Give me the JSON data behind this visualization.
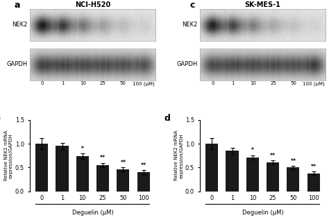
{
  "panel_a_title": "NCI-H520",
  "panel_c_title": "SK-MES-1",
  "blot_labels_left": [
    "NEK2",
    "GAPDH"
  ],
  "blot_labels_right": [
    "NEK2",
    "GAPDH"
  ],
  "x_tick_labels": [
    "0",
    "1",
    "10",
    "25",
    "50",
    "100 (μM)"
  ],
  "bar_categories": [
    "0",
    "1",
    "10",
    "25",
    "50",
    "100"
  ],
  "xlabel": "Deguelin (μM)",
  "ylabel": "Relative NEK2 mRNA\nexpression/GAPDH",
  "panel_b_values": [
    1.0,
    0.95,
    0.74,
    0.55,
    0.46,
    0.4
  ],
  "panel_b_errors": [
    0.12,
    0.06,
    0.06,
    0.05,
    0.04,
    0.05
  ],
  "panel_d_values": [
    1.0,
    0.85,
    0.71,
    0.61,
    0.5,
    0.38
  ],
  "panel_d_errors": [
    0.12,
    0.07,
    0.05,
    0.04,
    0.04,
    0.04
  ],
  "panel_b_sig": [
    "",
    "",
    "*",
    "**",
    "**",
    "**"
  ],
  "panel_d_sig": [
    "",
    "",
    "*",
    "**",
    "**",
    "**"
  ],
  "bar_color": "#1a1a1a",
  "ylim": [
    0,
    1.5
  ],
  "yticks": [
    0.0,
    0.5,
    1.0,
    1.5
  ],
  "panel_labels": [
    "a",
    "b",
    "c",
    "d"
  ],
  "background_color": "#ffffff",
  "nek2_a_intensities": [
    0.95,
    0.8,
    0.52,
    0.32,
    0.18,
    0.1
  ],
  "gapdh_a_intensities": [
    0.85,
    0.83,
    0.81,
    0.8,
    0.78,
    0.77
  ],
  "nek2_c_intensities": [
    0.92,
    0.75,
    0.48,
    0.28,
    0.16,
    0.08
  ],
  "gapdh_c_intensities": [
    0.8,
    0.82,
    0.81,
    0.8,
    0.79,
    0.88
  ]
}
